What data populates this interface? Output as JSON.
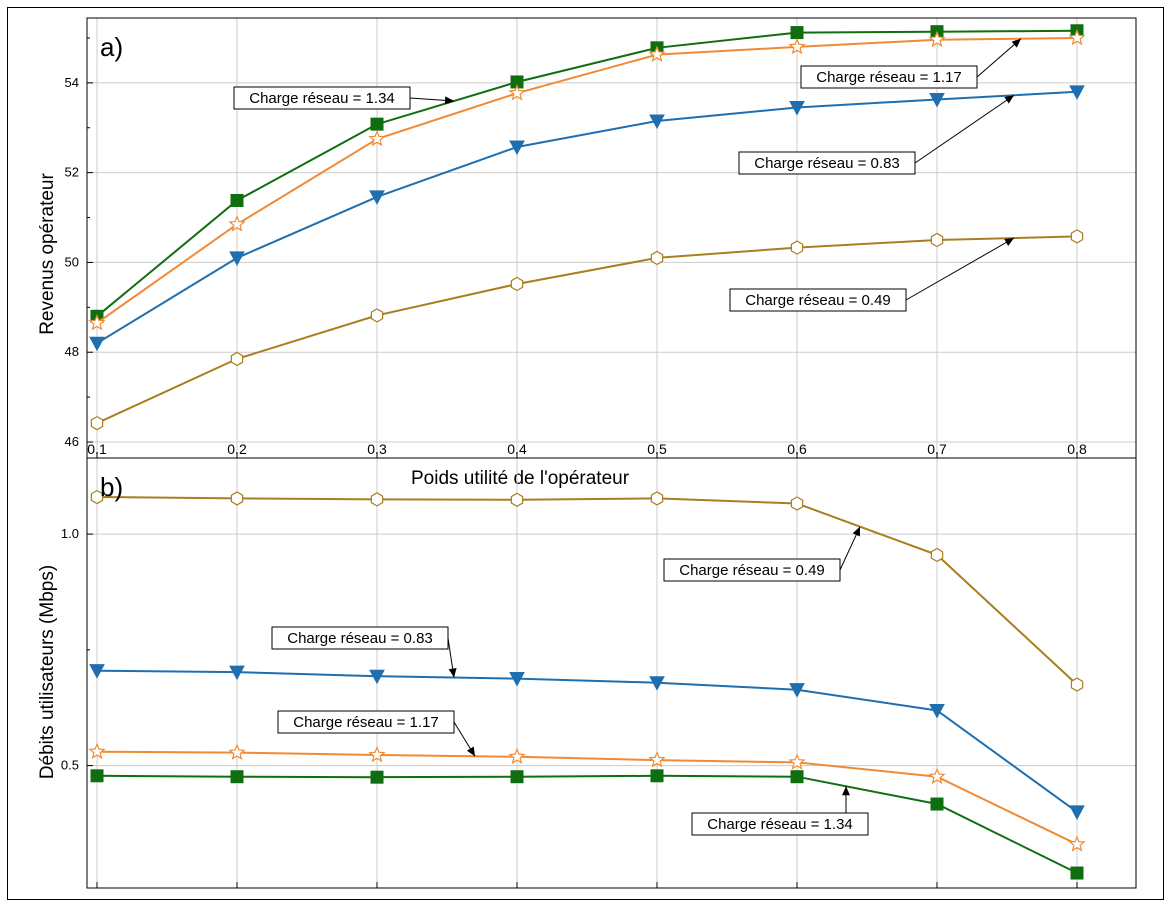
{
  "chart_data": [
    {
      "type": "line",
      "panel_label": "a)",
      "xlabel": "Poids utilité de l'opérateur",
      "ylabel": "Revenus opérateur",
      "x": [
        0.1,
        0.2,
        0.3,
        0.4,
        0.5,
        0.6,
        0.7,
        0.8
      ],
      "x_tick_labels": [
        "0.1",
        "0.2",
        "0.3",
        "0.4",
        "0.5",
        "0.6",
        "0.7",
        "0.8"
      ],
      "xlim": [
        0.1,
        0.8
      ],
      "ylim": [
        46,
        55.4
      ],
      "y_ticks": [
        46,
        48,
        50,
        52,
        54
      ],
      "y_tick_labels": [
        "46",
        "48",
        "50",
        "52",
        "54"
      ],
      "grid": true,
      "series": [
        {
          "key": "s134",
          "marker": "square",
          "color": "#0f6e0f",
          "values": [
            48.8,
            51.38,
            53.08,
            54.02,
            54.78,
            55.12,
            55.14,
            55.16
          ]
        },
        {
          "key": "s117",
          "marker": "star",
          "color": "#f08a34",
          "values": [
            48.65,
            50.85,
            52.75,
            53.77,
            54.63,
            54.8,
            54.96,
            55.0
          ]
        },
        {
          "key": "s083",
          "marker": "triangle-down",
          "color": "#1f6fb0",
          "values": [
            48.2,
            50.1,
            51.46,
            52.57,
            53.15,
            53.45,
            53.63,
            53.8
          ]
        },
        {
          "key": "s049",
          "marker": "hexagon",
          "color": "#a87f1e",
          "values": [
            46.42,
            47.85,
            48.82,
            49.52,
            50.1,
            50.33,
            50.5,
            50.58
          ]
        }
      ],
      "annotations": [
        {
          "text": "Charge réseau = 1.34",
          "series": "s134"
        },
        {
          "text": "Charge réseau = 1.17",
          "series": "s117"
        },
        {
          "text": "Charge réseau = 0.83",
          "series": "s083"
        },
        {
          "text": "Charge réseau = 0.49",
          "series": "s049"
        }
      ]
    },
    {
      "type": "line",
      "panel_label": "b)",
      "xlabel": "",
      "ylabel": "Débits utilisateurs (Mbps)",
      "x": [
        0.1,
        0.2,
        0.3,
        0.4,
        0.5,
        0.6,
        0.7,
        0.8
      ],
      "xlim": [
        0.1,
        0.8
      ],
      "ylim": [
        0.24,
        1.16
      ],
      "y_ticks": [
        0.5,
        1.0
      ],
      "y_tick_labels": [
        "0.5",
        "1.0"
      ],
      "grid": true,
      "series": [
        {
          "key": "s049",
          "marker": "hexagon",
          "color": "#a87f1e",
          "values": [
            1.08,
            1.077,
            1.075,
            1.074,
            1.077,
            1.066,
            0.955,
            0.675
          ]
        },
        {
          "key": "s083",
          "marker": "triangle-down",
          "color": "#1f6fb0",
          "values": [
            0.705,
            0.702,
            0.693,
            0.688,
            0.679,
            0.664,
            0.619,
            0.4
          ]
        },
        {
          "key": "s117",
          "marker": "star",
          "color": "#f08a34",
          "values": [
            0.53,
            0.528,
            0.523,
            0.519,
            0.512,
            0.507,
            0.476,
            0.33
          ]
        },
        {
          "key": "s134",
          "marker": "square",
          "color": "#0f6e0f",
          "values": [
            0.478,
            0.476,
            0.475,
            0.476,
            0.478,
            0.476,
            0.417,
            0.268
          ]
        }
      ],
      "annotations": [
        {
          "text": "Charge réseau = 0.49",
          "series": "s049"
        },
        {
          "text": "Charge réseau = 0.83",
          "series": "s083"
        },
        {
          "text": "Charge réseau = 1.17",
          "series": "s117"
        },
        {
          "text": "Charge réseau = 1.34",
          "series": "s134"
        }
      ]
    }
  ]
}
